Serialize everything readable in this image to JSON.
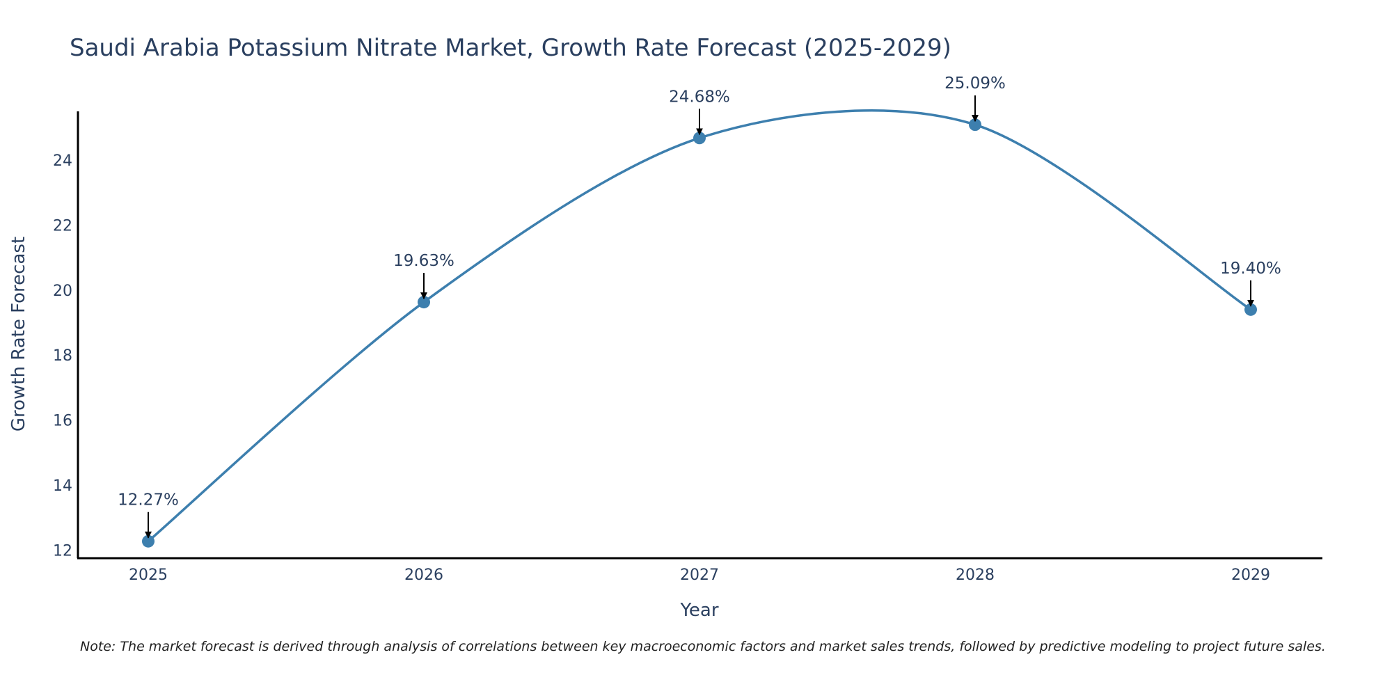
{
  "chart_data": {
    "type": "line",
    "title": "Saudi Arabia Potassium Nitrate Market, Growth Rate Forecast (2025-2029)",
    "xlabel": "Year",
    "ylabel": "Growth Rate Forecast",
    "categories": [
      "2025",
      "2026",
      "2027",
      "2028",
      "2029"
    ],
    "series": [
      {
        "name": "Growth Rate Forecast",
        "values": [
          12.27,
          19.63,
          24.68,
          25.09,
          19.4
        ]
      }
    ],
    "data_labels": [
      "12.27%",
      "19.63%",
      "24.68%",
      "25.09%",
      "19.40%"
    ],
    "yticks": [
      12,
      14,
      16,
      18,
      20,
      22,
      24
    ],
    "ylim": [
      11.75,
      25.5
    ],
    "grid": false,
    "line_shape": "spline",
    "colors": {
      "line": "#3d7fae",
      "marker": "#3d7fae",
      "arrow": "#000000",
      "axis": "#000000"
    }
  },
  "note": "Note: The market forecast is derived through analysis of correlations between key macroeconomic factors and market sales trends, followed by predictive modeling to project future sales."
}
